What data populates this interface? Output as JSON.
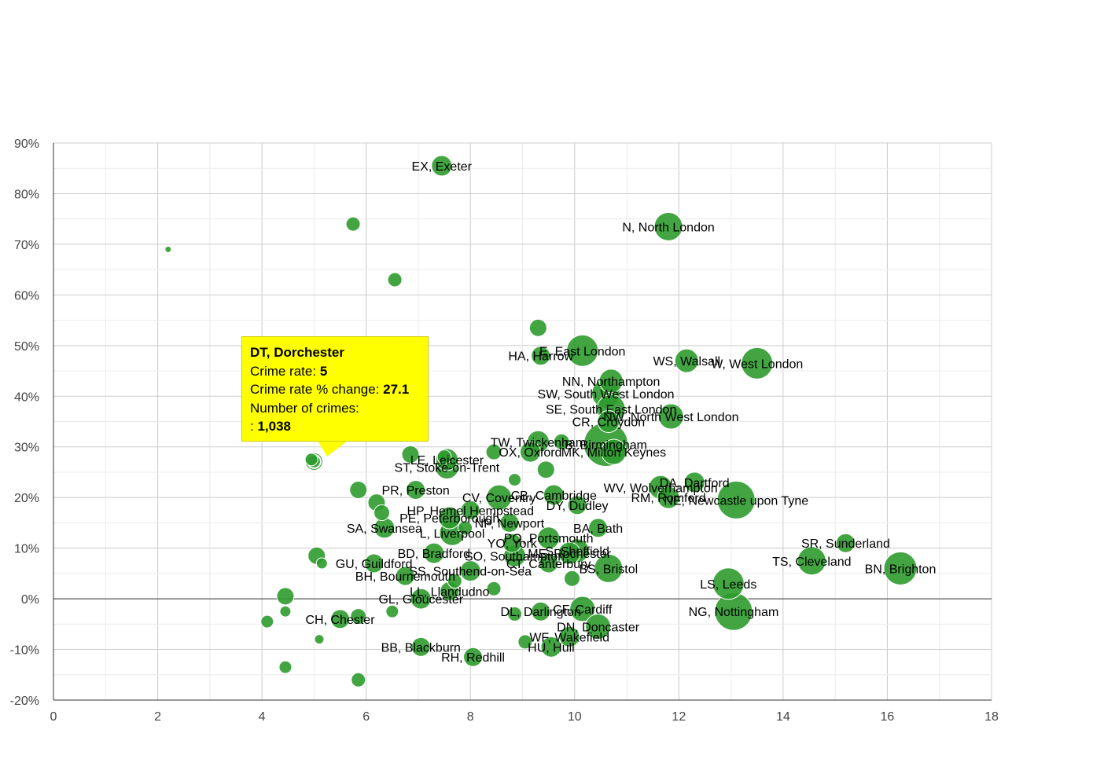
{
  "chart_data": {
    "type": "scatter",
    "title": "",
    "xlabel": "",
    "ylabel": "",
    "xlim": [
      0,
      18
    ],
    "ylim": [
      -20,
      90
    ],
    "x_ticks": [
      "0",
      "2",
      "4",
      "6",
      "8",
      "10",
      "12",
      "14",
      "16",
      "18"
    ],
    "y_ticks": [
      "-20%",
      "-10%",
      "0%",
      "10%",
      "20%",
      "30%",
      "40%",
      "50%",
      "60%",
      "70%",
      "80%",
      "90%"
    ],
    "grid": true,
    "bubble_color": "#2e9b2e",
    "points": [
      {
        "label": "EX, Exeter",
        "x": 7.45,
        "y": 85.5,
        "r": 13
      },
      {
        "label": "N, North London",
        "x": 11.8,
        "y": 73.5,
        "r": 18
      },
      {
        "label": "HA, Harrow",
        "x": 9.35,
        "y": 48.0,
        "r": 12
      },
      {
        "label": "E, East London",
        "x": 10.15,
        "y": 49.0,
        "r": 20
      },
      {
        "label": "WS, Walsall",
        "x": 12.15,
        "y": 47.0,
        "r": 15
      },
      {
        "label": "W, West London",
        "x": 13.5,
        "y": 46.5,
        "r": 20
      },
      {
        "label": "NN, Northampton",
        "x": 10.7,
        "y": 43.0,
        "r": 15
      },
      {
        "label": "SW, South West London",
        "x": 10.6,
        "y": 40.5,
        "r": 18
      },
      {
        "label": "SE, South East London",
        "x": 10.7,
        "y": 37.5,
        "r": 18
      },
      {
        "label": "NW, North West London",
        "x": 11.85,
        "y": 36.0,
        "r": 16
      },
      {
        "label": "CR, Croydon",
        "x": 10.65,
        "y": 35.0,
        "r": 14
      },
      {
        "label": "TW, Twickenham",
        "x": 9.3,
        "y": 31.0,
        "r": 14
      },
      {
        "label": "B, Birmingham",
        "x": 10.6,
        "y": 30.5,
        "r": 28
      },
      {
        "label": "LE, Leicester",
        "x": 7.55,
        "y": 27.5,
        "r": 14
      },
      {
        "label": "OX, Oxford",
        "x": 9.15,
        "y": 29.0,
        "r": 13
      },
      {
        "label": "MK, Milton Keynes",
        "x": 10.75,
        "y": 29.0,
        "r": 16
      },
      {
        "label": "ST, Stoke-on-Trent",
        "x": 7.55,
        "y": 26.0,
        "r": 15
      },
      {
        "label": "DA, Dartford",
        "x": 12.3,
        "y": 23.0,
        "r": 13
      },
      {
        "label": "PR, Preston",
        "x": 6.95,
        "y": 21.5,
        "r": 12
      },
      {
        "label": "WV, Wolverhampton",
        "x": 11.65,
        "y": 22.0,
        "r": 15
      },
      {
        "label": "NE, Newcastle upon Tyne",
        "x": 13.1,
        "y": 19.5,
        "r": 24
      },
      {
        "label": "RM, Romford",
        "x": 11.8,
        "y": 20.0,
        "r": 14
      },
      {
        "label": "CV, Coventry",
        "x": 8.55,
        "y": 20.0,
        "r": 16
      },
      {
        "label": "CB, Cambridge",
        "x": 9.6,
        "y": 20.5,
        "r": 13
      },
      {
        "label": "DY, Dudley",
        "x": 10.05,
        "y": 18.5,
        "r": 12
      },
      {
        "label": "HP, Hemel Hempstead",
        "x": 8.0,
        "y": 17.5,
        "r": 12
      },
      {
        "label": "PE, Peterborough",
        "x": 7.6,
        "y": 16.0,
        "r": 14
      },
      {
        "label": "NP, Newport",
        "x": 8.75,
        "y": 15.0,
        "r": 12
      },
      {
        "label": "BA, Bath",
        "x": 10.45,
        "y": 14.0,
        "r": 12
      },
      {
        "label": "SA, Swansea",
        "x": 6.35,
        "y": 14.0,
        "r": 13
      },
      {
        "label": "L, Liverpool",
        "x": 7.65,
        "y": 13.0,
        "r": 16
      },
      {
        "label": "PO, Portsmouth",
        "x": 9.5,
        "y": 12.0,
        "r": 14
      },
      {
        "label": "SR, Sunderland",
        "x": 15.2,
        "y": 11.0,
        "r": 12
      },
      {
        "label": "YO, York",
        "x": 8.8,
        "y": 11.0,
        "r": 12
      },
      {
        "label": "S, Sheffield",
        "x": 10.05,
        "y": 9.5,
        "r": 15
      },
      {
        "label": "ME, Rochester",
        "x": 9.9,
        "y": 9.0,
        "r": 14
      },
      {
        "label": "BD, Bradford",
        "x": 7.3,
        "y": 9.0,
        "r": 13
      },
      {
        "label": "SO, Southampton",
        "x": 8.85,
        "y": 8.5,
        "r": 14
      },
      {
        "label": "TS, Cleveland",
        "x": 14.55,
        "y": 7.5,
        "r": 18
      },
      {
        "label": "CT, Canterbury",
        "x": 9.5,
        "y": 7.0,
        "r": 12
      },
      {
        "label": "BN, Brighton",
        "x": 16.25,
        "y": 6.0,
        "r": 21
      },
      {
        "label": "BS, Bristol",
        "x": 10.65,
        "y": 6.0,
        "r": 18
      },
      {
        "label": "GU, Guildford",
        "x": 6.15,
        "y": 7.0,
        "r": 12
      },
      {
        "label": "SS, Southend-on-Sea",
        "x": 8.0,
        "y": 5.5,
        "r": 13
      },
      {
        "label": "BH, Bournemouth",
        "x": 6.75,
        "y": 4.5,
        "r": 12
      },
      {
        "label": "LS, Leeds",
        "x": 12.95,
        "y": 3.0,
        "r": 20
      },
      {
        "label": "LL, Llandudno",
        "x": 7.6,
        "y": 1.5,
        "r": 12
      },
      {
        "label": "GL, Gloucester",
        "x": 7.05,
        "y": 0.0,
        "r": 13
      },
      {
        "label": "NG, Nottingham",
        "x": 13.05,
        "y": -2.5,
        "r": 24
      },
      {
        "label": "CF, Cardiff",
        "x": 10.15,
        "y": -2.0,
        "r": 16
      },
      {
        "label": "DL, Darlington",
        "x": 9.35,
        "y": -2.5,
        "r": 12
      },
      {
        "label": "CH, Chester",
        "x": 5.5,
        "y": -4.0,
        "r": 12
      },
      {
        "label": "DN, Doncaster",
        "x": 10.45,
        "y": -5.5,
        "r": 16
      },
      {
        "label": "WF, Wakefield",
        "x": 9.9,
        "y": -7.5,
        "r": 13
      },
      {
        "label": "HU, Hull",
        "x": 9.55,
        "y": -9.5,
        "r": 13
      },
      {
        "label": "BB, Blackburn",
        "x": 7.05,
        "y": -9.5,
        "r": 12
      },
      {
        "label": "RH, Redhill",
        "x": 8.05,
        "y": -11.5,
        "r": 12
      },
      {
        "label": "DT, Dorchester",
        "x": 5.0,
        "y": 27.1,
        "r": 8,
        "highlight": true
      },
      {
        "label": "",
        "x": 2.2,
        "y": 69.0,
        "r": 4
      },
      {
        "label": "",
        "x": 5.75,
        "y": 74.0,
        "r": 9
      },
      {
        "label": "",
        "x": 6.55,
        "y": 63.0,
        "r": 9
      },
      {
        "label": "",
        "x": 9.3,
        "y": 53.5,
        "r": 11
      },
      {
        "label": "",
        "x": 5.1,
        "y": 50.5,
        "r": 5
      },
      {
        "label": "",
        "x": 9.75,
        "y": 31.0,
        "r": 10
      },
      {
        "label": "",
        "x": 8.45,
        "y": 29.0,
        "r": 10
      },
      {
        "label": "",
        "x": 6.85,
        "y": 28.5,
        "r": 11
      },
      {
        "label": "",
        "x": 7.5,
        "y": 28.0,
        "r": 9
      },
      {
        "label": "",
        "x": 4.95,
        "y": 27.5,
        "r": 8
      },
      {
        "label": "",
        "x": 9.45,
        "y": 25.5,
        "r": 11
      },
      {
        "label": "",
        "x": 8.85,
        "y": 23.5,
        "r": 8
      },
      {
        "label": "",
        "x": 5.85,
        "y": 21.5,
        "r": 11
      },
      {
        "label": "",
        "x": 6.2,
        "y": 19.0,
        "r": 11
      },
      {
        "label": "",
        "x": 6.3,
        "y": 17.0,
        "r": 10
      },
      {
        "label": "",
        "x": 7.9,
        "y": 14.0,
        "r": 9
      },
      {
        "label": "",
        "x": 5.05,
        "y": 8.5,
        "r": 11
      },
      {
        "label": "",
        "x": 5.15,
        "y": 7.0,
        "r": 7
      },
      {
        "label": "",
        "x": 9.95,
        "y": 4.0,
        "r": 10
      },
      {
        "label": "",
        "x": 7.7,
        "y": 3.5,
        "r": 9
      },
      {
        "label": "",
        "x": 8.45,
        "y": 2.0,
        "r": 9
      },
      {
        "label": "",
        "x": 4.45,
        "y": 0.5,
        "r": 11
      },
      {
        "label": "",
        "x": 4.45,
        "y": -2.5,
        "r": 7
      },
      {
        "label": "",
        "x": 6.5,
        "y": -2.5,
        "r": 8
      },
      {
        "label": "",
        "x": 5.85,
        "y": -3.5,
        "r": 10
      },
      {
        "label": "",
        "x": 4.1,
        "y": -4.5,
        "r": 8
      },
      {
        "label": "",
        "x": 8.85,
        "y": -3.0,
        "r": 9
      },
      {
        "label": "",
        "x": 5.1,
        "y": -8.0,
        "r": 6
      },
      {
        "label": "",
        "x": 9.05,
        "y": -8.5,
        "r": 9
      },
      {
        "label": "",
        "x": 4.45,
        "y": -13.5,
        "r": 8
      },
      {
        "label": "",
        "x": 5.85,
        "y": -16.0,
        "r": 9
      }
    ]
  },
  "tooltip": {
    "title": "DT, Dorchester",
    "rate_label": "Crime rate:",
    "rate_value": "5",
    "change_label": "Crime rate % change:",
    "change_value": "27.1",
    "count_label": "Number of crimes:",
    "count_prefix": ":",
    "count_value": "1,038"
  }
}
